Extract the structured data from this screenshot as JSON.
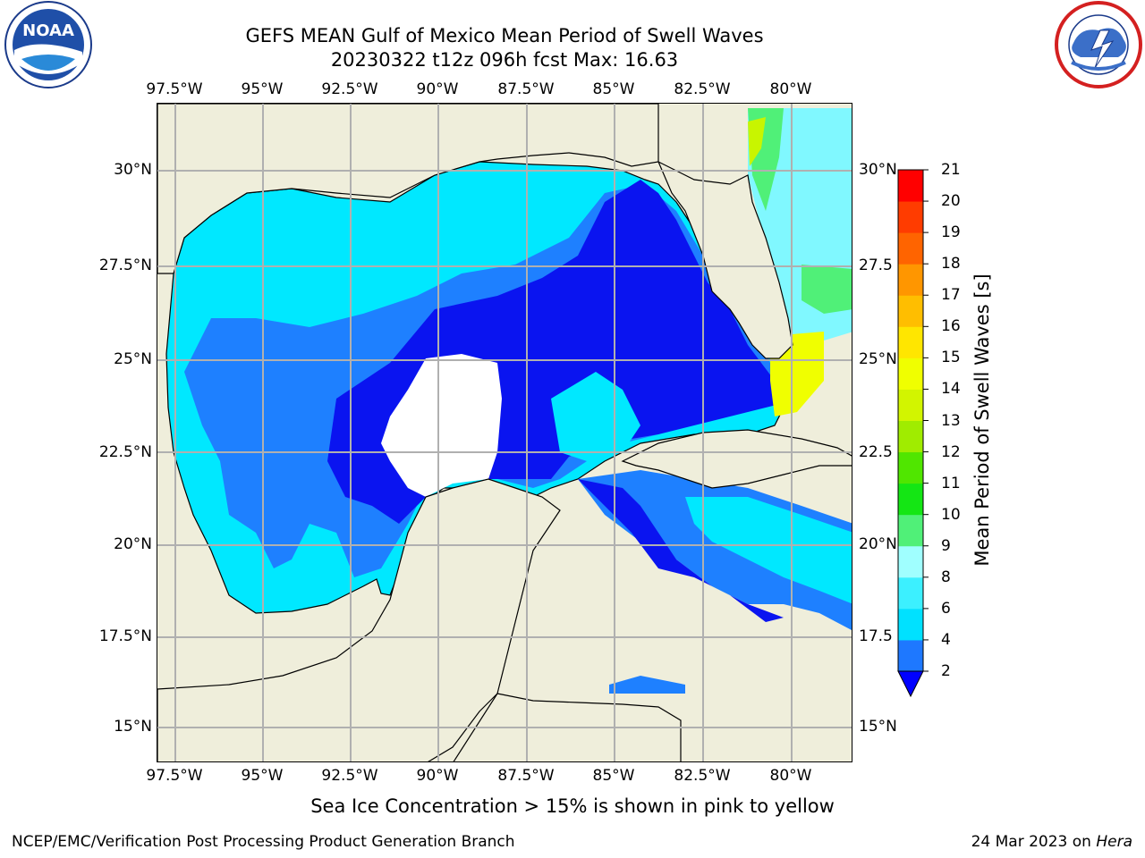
{
  "title": {
    "line1": "GEFS MEAN Gulf of Mexico Mean Period of Swell Waves",
    "line2": "20230322 t12z 096h fcst   Max: 16.63"
  },
  "logos": {
    "noaa": {
      "text": "NOAA",
      "icon": "noaa-logo-icon"
    },
    "nws": {
      "icon": "nws-logo-icon"
    }
  },
  "axes": {
    "lon_ticks": [
      "97.5°W",
      "95°W",
      "92.5°W",
      "90°W",
      "87.5°W",
      "85°W",
      "82.5°W",
      "80°W"
    ],
    "lat_ticks_left": [
      "30°N",
      "27.5°N",
      "25°N",
      "22.5°N",
      "20°N",
      "17.5°N",
      "15°N"
    ],
    "lat_ticks_right": [
      "30°N",
      "27.5",
      "25°N",
      "22.5",
      "20°N",
      "17.5",
      "15°N"
    ],
    "lon_values": [
      -97.5,
      -95,
      -92.5,
      -90,
      -87.5,
      -85,
      -82.5,
      -80
    ],
    "lat_values": [
      30,
      27.5,
      25,
      22.5,
      20,
      17.5,
      15
    ],
    "lon_range": [
      -98,
      -79
    ],
    "lat_range": [
      14,
      31.75
    ],
    "grid": true
  },
  "colorbar": {
    "title": "Mean Period of Swell Waves [s]",
    "levels": [
      2,
      4,
      6,
      8,
      9,
      10,
      11,
      12,
      13,
      14,
      15,
      16,
      17,
      18,
      19,
      20,
      21
    ],
    "labels": [
      "2",
      "4",
      "6",
      "8",
      "9",
      "10",
      "11",
      "12",
      "13",
      "14",
      "15",
      "16",
      "17",
      "18",
      "19",
      "20",
      "21"
    ],
    "colors": [
      "#1e78ff",
      "#00e1ff",
      "#3cf0ff",
      "#a0ffff",
      "#50f078",
      "#14e614",
      "#50e600",
      "#a0ec00",
      "#d2f500",
      "#f0ff00",
      "#ffe600",
      "#ffbe00",
      "#ff9600",
      "#ff6400",
      "#ff3c00",
      "#ff0000"
    ],
    "under_color": "#0000ff",
    "extend": "min"
  },
  "map": {
    "land_color": "#efeedb",
    "region_colors": {
      "deep": "#0a14f0",
      "mid": "#1e80ff",
      "light": "#00e8ff",
      "pale": "#80f8ff",
      "green": "#14e614",
      "yellowgreen": "#c8f500",
      "yellow": "#f0ff00"
    }
  },
  "note": "Sea Ice Concentration > 15% is shown in pink to yellow",
  "footer": {
    "left": "NCEP/EMC/Verification Post Processing Product Generation Branch",
    "right_prefix": "24 Mar 2023 on ",
    "right_machine": "Hera"
  }
}
